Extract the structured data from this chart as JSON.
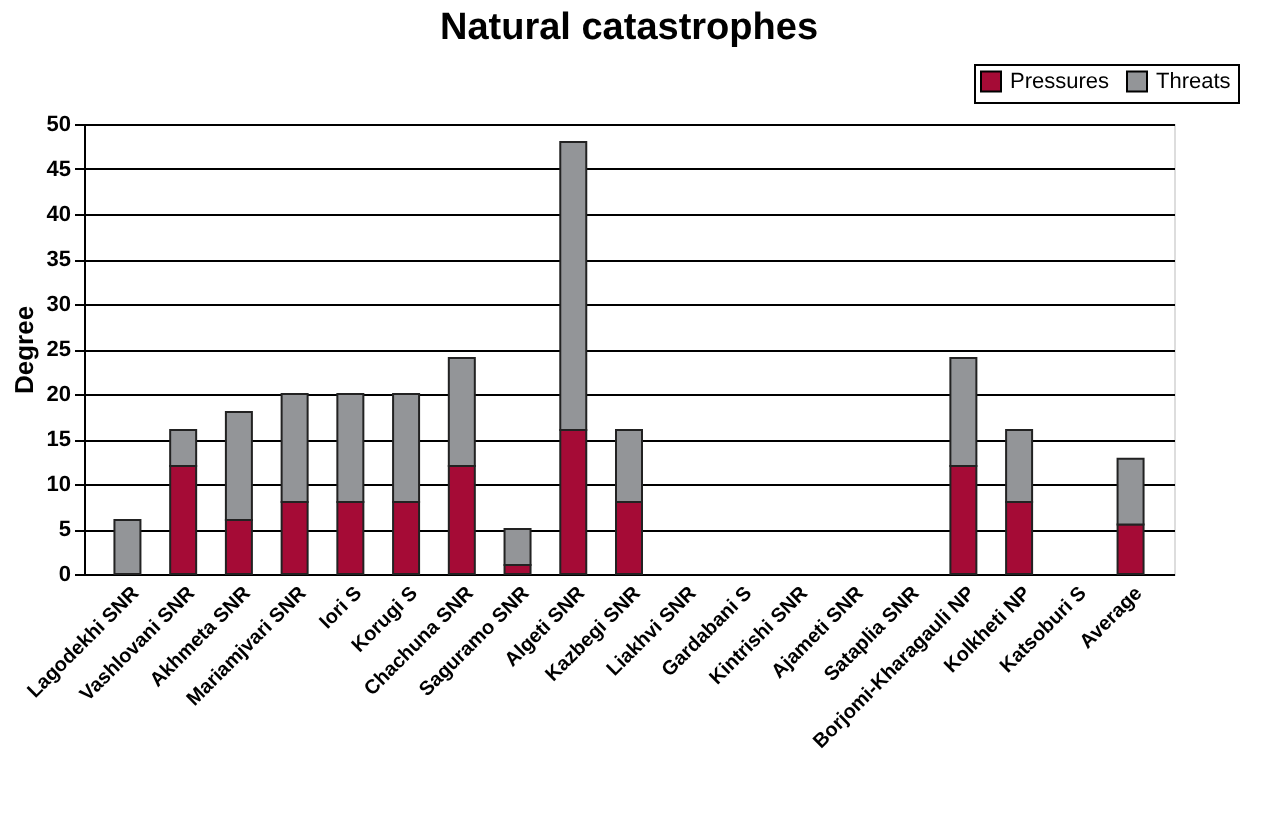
{
  "chart_data": {
    "type": "bar",
    "title": "Natural catastrophes",
    "ylabel": "Degree",
    "categories": [
      "Lagodekhi SNR",
      "Vashlovani SNR",
      "Akhmeta SNR",
      "Mariamjvari SNR",
      "Iori S",
      "Korugi S",
      "Chachuna SNR",
      "Saguramo SNR",
      "Algeti SNR",
      "Kazbegi SNR",
      "Liakhvi SNR",
      "Gardabani S",
      "Kintrishi SNR",
      "Ajameti SNR",
      "Sataplia SNR",
      "Borjomi-Kharagauli NP",
      "Kolkheti NP",
      "Katsoburi S",
      "Average"
    ],
    "series": [
      {
        "name": "Pressures",
        "color": "#a50b36",
        "values": [
          0,
          12,
          6,
          8,
          8,
          8,
          12,
          1,
          16,
          8,
          0,
          0,
          0,
          0,
          0,
          12,
          8,
          0,
          5.5
        ]
      },
      {
        "name": "Threats",
        "color": "#939598",
        "values": [
          6,
          4,
          12,
          12,
          12,
          12,
          12,
          4,
          32,
          8,
          0,
          0,
          0,
          0,
          0,
          12,
          8,
          0,
          7.3
        ]
      }
    ],
    "stacked": true,
    "ylim": [
      0,
      50
    ],
    "yticks": [
      0,
      5,
      10,
      15,
      20,
      25,
      30,
      35,
      40,
      45,
      50
    ],
    "grid": "y",
    "legend": "top right"
  }
}
